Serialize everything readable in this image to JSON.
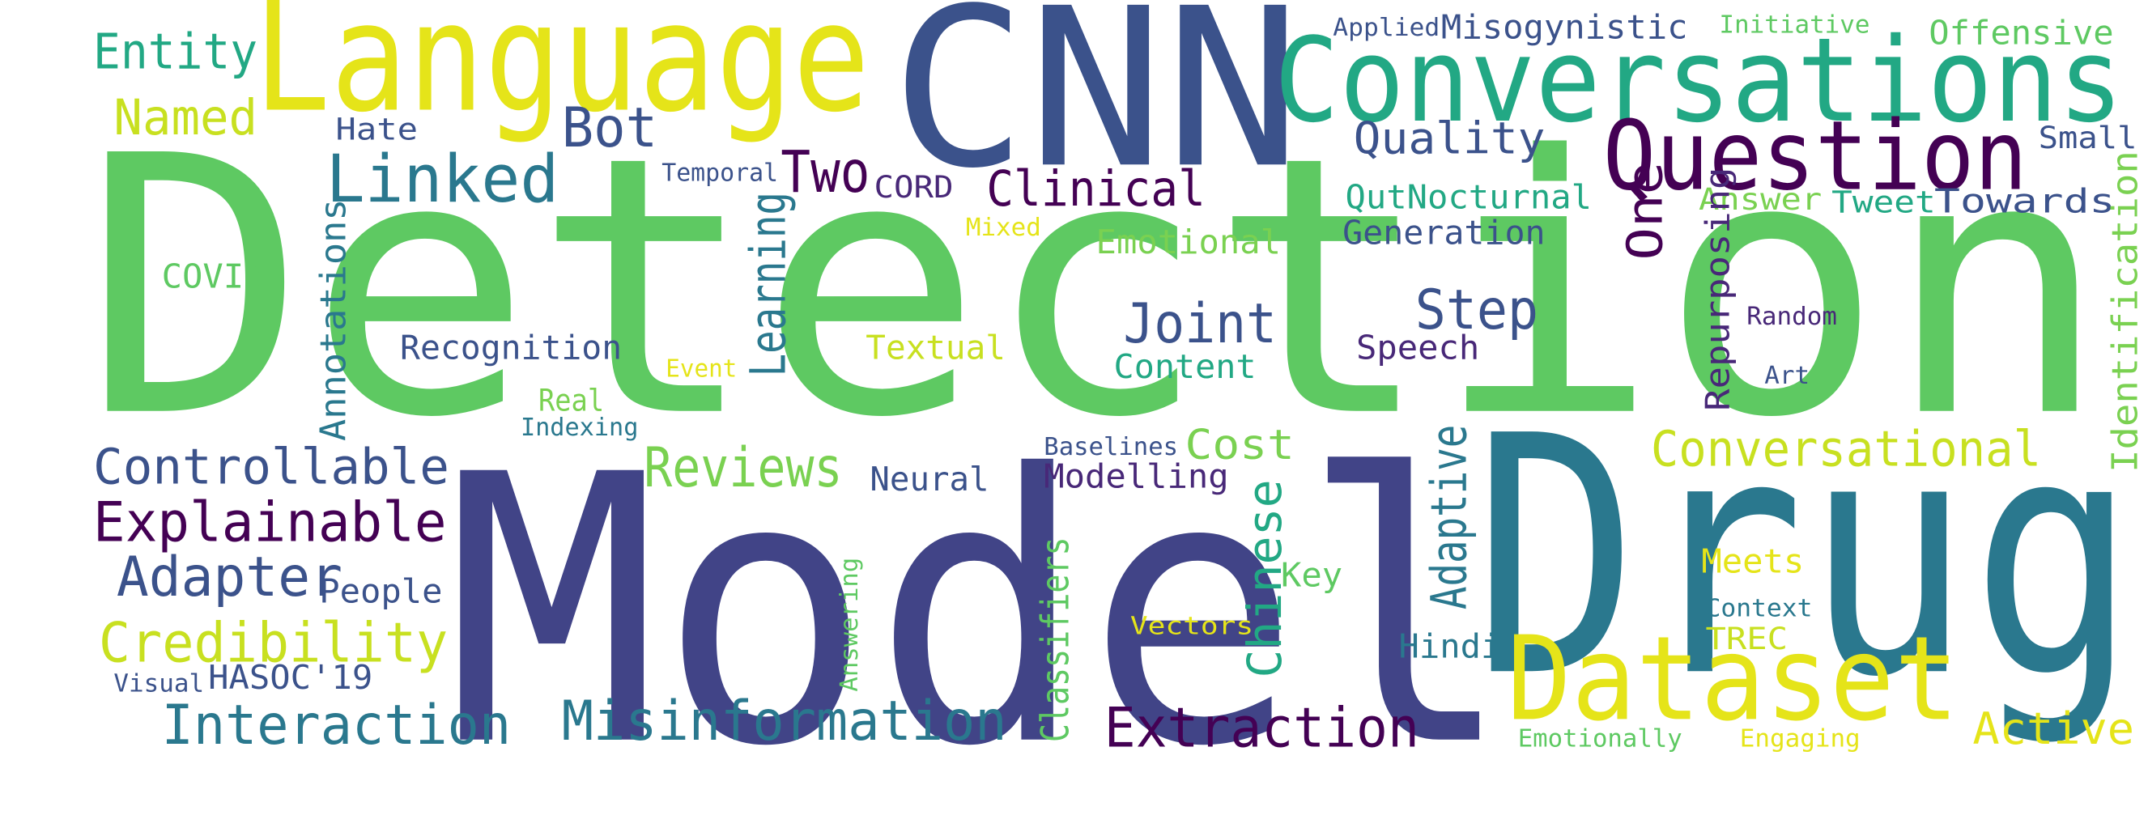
{
  "words": [
    "Detection",
    "Model",
    "Drug",
    "CNN",
    "Language",
    "Conversations",
    "Question",
    "Dataset",
    "Entity",
    "Named",
    "Bot",
    "Linked",
    "Hate",
    "Two",
    "Temporal",
    "CORD",
    "Clinical",
    "Quality",
    "Applied",
    "Misogynistic",
    "Initiative",
    "Offensive",
    "Small",
    "QutNocturnal",
    "Answer",
    "Tweet",
    "Towards",
    "Mixed",
    "COVID",
    "Emotional",
    "Generation",
    "Step",
    "Joint",
    "Recognition",
    "Textual",
    "Event",
    "Speech",
    "Content",
    "Random",
    "Art",
    "Real",
    "Indexing",
    "Controllable",
    "Reviews",
    "Neural",
    "Baselines",
    "Cost",
    "Modelling",
    "Conversational",
    "Explainable",
    "Adapter",
    "People",
    "Credibility",
    "Visual",
    "HASOC'19",
    "Interaction",
    "Misinformation",
    "Extraction",
    "Key",
    "Hindi",
    "Vectors",
    "Meets",
    "Context",
    "TREC",
    "Active",
    "Emotionally",
    "Engaging",
    "Annotations",
    "Learning",
    "One",
    "Repurposing",
    "Adaptive",
    "Chinese",
    "Classifiers",
    "Answering",
    "Identification"
  ]
}
